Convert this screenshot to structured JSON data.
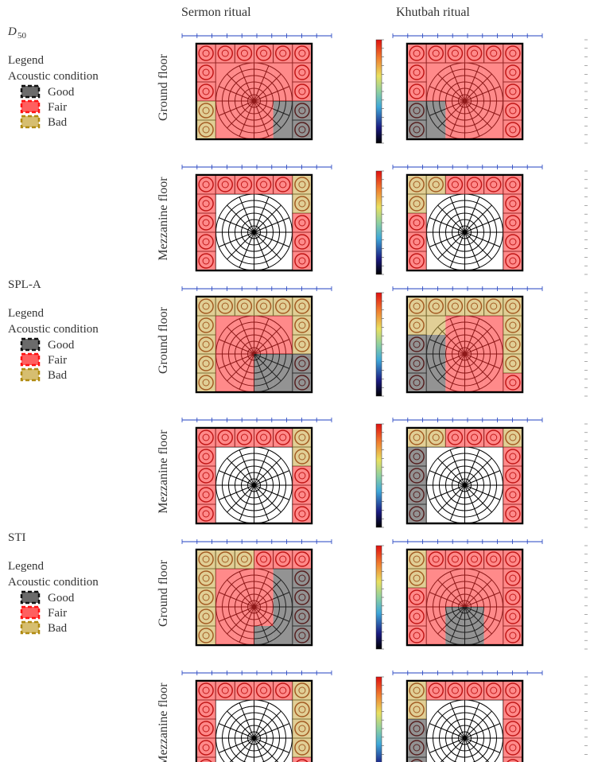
{
  "column_headers": [
    "Sermon ritual",
    "Khutbah ritual"
  ],
  "sections": [
    {
      "title": "D",
      "title_subscript": "50",
      "legend": {
        "title": "Legend",
        "subtitle": "Acoustic condition",
        "items": [
          "Good",
          "Fair",
          "Bad"
        ]
      },
      "rows": [
        "Ground floor",
        "Mezzanine floor"
      ]
    },
    {
      "title": "SPL-A",
      "legend": {
        "title": "Legend",
        "subtitle": "Acoustic condition",
        "items": [
          "Good",
          "Fair",
          "Bad"
        ]
      },
      "rows": [
        "Ground floor",
        "Mezzanine floor"
      ]
    },
    {
      "title": "STI",
      "legend": {
        "title": "Legend",
        "subtitle": "Acoustic condition",
        "items": [
          "Good",
          "Fair",
          "Bad"
        ]
      },
      "rows": [
        "Ground floor",
        "Mezzanine floor"
      ]
    }
  ]
}
